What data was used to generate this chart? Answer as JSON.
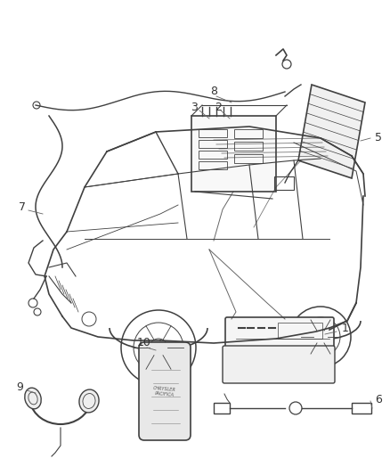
{
  "background_color": "#ffffff",
  "fig_width": 4.38,
  "fig_height": 5.33,
  "dpi": 100,
  "line_color": "#404040",
  "label_color": "#333333",
  "leader_color": "#666666"
}
